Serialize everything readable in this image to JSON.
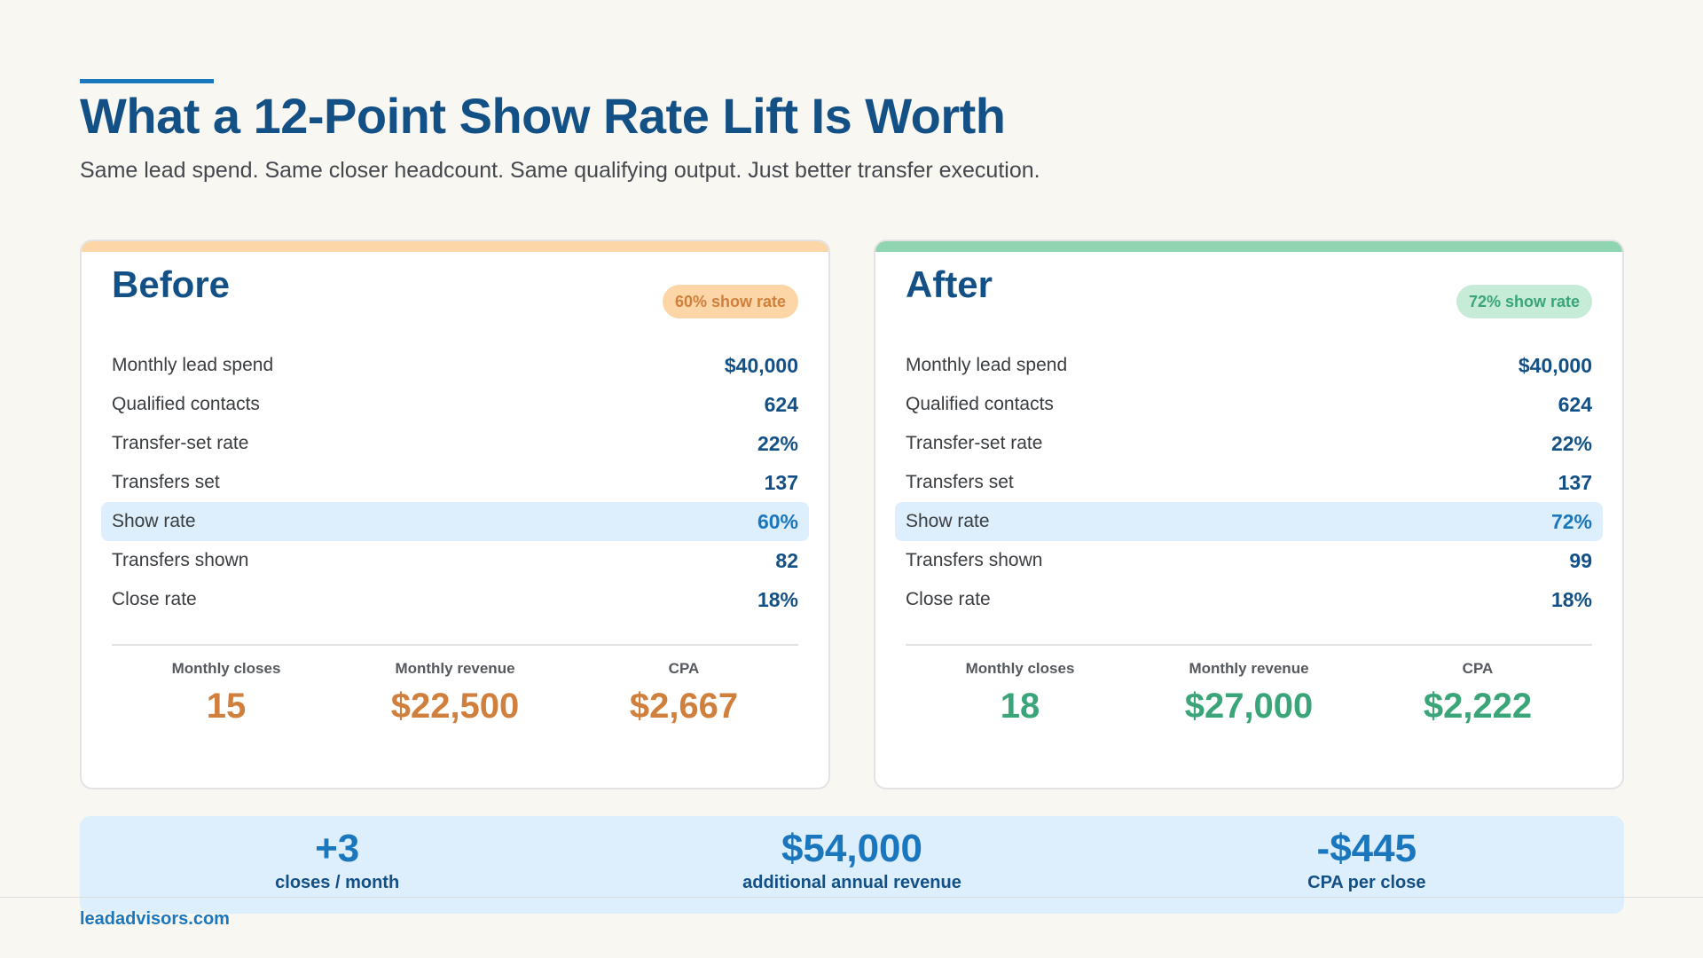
{
  "header": {
    "title": "What a 12-Point Show Rate Lift Is Worth",
    "subtitle": "Same lead spend. Same closer headcount. Same qualifying output. Just better transfer execution."
  },
  "colors": {
    "primary": "#135085",
    "accent_blue": "#1a76bd",
    "before_accent": "#fdd6a8",
    "before_text": "#d07f3c",
    "after_accent": "#8fd5b2",
    "after_text": "#3aa578",
    "highlight": "#ddeefc"
  },
  "before": {
    "title": "Before",
    "badge": "60% show rate",
    "rows": [
      {
        "label": "Monthly lead spend",
        "value": "$40,000"
      },
      {
        "label": "Qualified contacts",
        "value": "624"
      },
      {
        "label": "Transfer-set rate",
        "value": "22%"
      },
      {
        "label": "Transfers set",
        "value": "137"
      },
      {
        "label": "Show rate",
        "value": "60%"
      },
      {
        "label": "Transfers shown",
        "value": "82"
      },
      {
        "label": "Close rate",
        "value": "18%"
      }
    ],
    "metrics": [
      {
        "label": "Monthly closes",
        "value": "15"
      },
      {
        "label": "Monthly revenue",
        "value": "$22,500"
      },
      {
        "label": "CPA",
        "value": "$2,667"
      }
    ]
  },
  "after": {
    "title": "After",
    "badge": "72% show rate",
    "rows": [
      {
        "label": "Monthly lead spend",
        "value": "$40,000"
      },
      {
        "label": "Qualified contacts",
        "value": "624"
      },
      {
        "label": "Transfer-set rate",
        "value": "22%"
      },
      {
        "label": "Transfers set",
        "value": "137"
      },
      {
        "label": "Show rate",
        "value": "72%"
      },
      {
        "label": "Transfers shown",
        "value": "99"
      },
      {
        "label": "Close rate",
        "value": "18%"
      }
    ],
    "metrics": [
      {
        "label": "Monthly closes",
        "value": "18"
      },
      {
        "label": "Monthly revenue",
        "value": "$27,000"
      },
      {
        "label": "CPA",
        "value": "$2,222"
      }
    ]
  },
  "summary": [
    {
      "value": "+3",
      "label": "closes / month"
    },
    {
      "value": "$54,000",
      "label": "additional annual revenue"
    },
    {
      "value": "-$445",
      "label": "CPA per close"
    }
  ],
  "footer": {
    "url": "leadadvisors.com"
  }
}
